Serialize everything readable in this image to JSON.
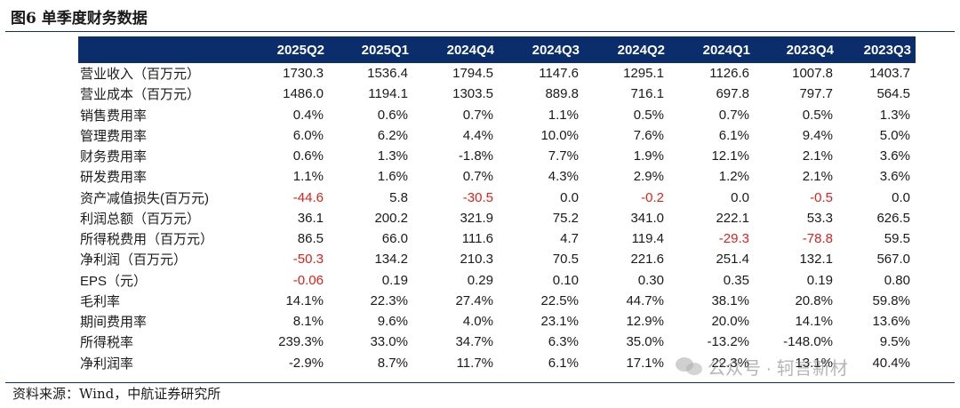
{
  "title": "图6  单季度财务数据",
  "columns": [
    "2025Q2",
    "2025Q1",
    "2024Q4",
    "2024Q3",
    "2024Q2",
    "2024Q1",
    "2023Q4",
    "2023Q3"
  ],
  "rows": [
    {
      "label": "营业收入（百万元）",
      "values": [
        "1730.3",
        "1536.4",
        "1794.5",
        "1147.6",
        "1295.1",
        "1126.6",
        "1007.8",
        "1403.7"
      ]
    },
    {
      "label": "营业成本（百万元）",
      "values": [
        "1486.0",
        "1194.1",
        "1303.5",
        "889.8",
        "716.1",
        "697.8",
        "797.7",
        "564.5"
      ]
    },
    {
      "label": "销售费用率",
      "values": [
        "0.4%",
        "0.6%",
        "0.7%",
        "1.1%",
        "0.5%",
        "0.7%",
        "0.5%",
        "1.3%"
      ]
    },
    {
      "label": "管理费用率",
      "values": [
        "6.0%",
        "6.2%",
        "4.4%",
        "10.0%",
        "7.6%",
        "6.1%",
        "9.4%",
        "5.0%"
      ]
    },
    {
      "label": "财务费用率",
      "values": [
        "0.6%",
        "1.3%",
        "-1.8%",
        "7.7%",
        "1.9%",
        "12.1%",
        "2.1%",
        "3.6%"
      ]
    },
    {
      "label": "研发费用率",
      "values": [
        "1.1%",
        "1.6%",
        "0.7%",
        "4.3%",
        "2.9%",
        "1.2%",
        "2.1%",
        "3.6%"
      ]
    },
    {
      "label": "资产减值损失(百万元)",
      "values": [
        "-44.6",
        "5.8",
        "-30.5",
        "0.0",
        "-0.2",
        "0.0",
        "-0.5",
        "0.0"
      ],
      "negative_cols": [
        0,
        2,
        4,
        6
      ]
    },
    {
      "label": "利润总额（百万元）",
      "values": [
        "36.1",
        "200.2",
        "321.9",
        "75.2",
        "341.0",
        "222.1",
        "53.3",
        "626.5"
      ]
    },
    {
      "label": "所得税费用（百万元）",
      "values": [
        "86.5",
        "66.0",
        "111.6",
        "4.7",
        "119.4",
        "-29.3",
        "-78.8",
        "59.5"
      ],
      "negative_cols": [
        5,
        6
      ]
    },
    {
      "label": "净利润（百万元）",
      "values": [
        "-50.3",
        "134.2",
        "210.3",
        "70.5",
        "221.6",
        "251.4",
        "132.1",
        "567.0"
      ],
      "negative_cols": [
        0
      ]
    },
    {
      "label": "EPS（元）",
      "values": [
        "-0.06",
        "0.19",
        "0.29",
        "0.10",
        "0.30",
        "0.35",
        "0.19",
        "0.80"
      ],
      "negative_cols": [
        0
      ]
    },
    {
      "label": "毛利率",
      "values": [
        "14.1%",
        "22.3%",
        "27.4%",
        "22.5%",
        "44.7%",
        "38.1%",
        "20.8%",
        "59.8%"
      ]
    },
    {
      "label": "期间费用率",
      "values": [
        "8.1%",
        "9.6%",
        "4.0%",
        "23.1%",
        "12.9%",
        "20.0%",
        "14.1%",
        "13.6%"
      ]
    },
    {
      "label": "所得税率",
      "values": [
        "239.3%",
        "33.0%",
        "34.7%",
        "6.3%",
        "35.0%",
        "-13.2%",
        "-148.0%",
        "9.5%"
      ]
    },
    {
      "label": "净利润率",
      "values": [
        "-2.9%",
        "8.7%",
        "11.7%",
        "6.1%",
        "17.1%",
        "22.3%",
        "13.1%",
        "40.4%"
      ]
    }
  ],
  "source": "资料来源：Wind，中航证券研究所",
  "watermark": "公众号 · 轲言新材",
  "colors": {
    "header_bg": "#0b2d6b",
    "negative": "#e0201b",
    "rule": "#0c2f6b"
  }
}
